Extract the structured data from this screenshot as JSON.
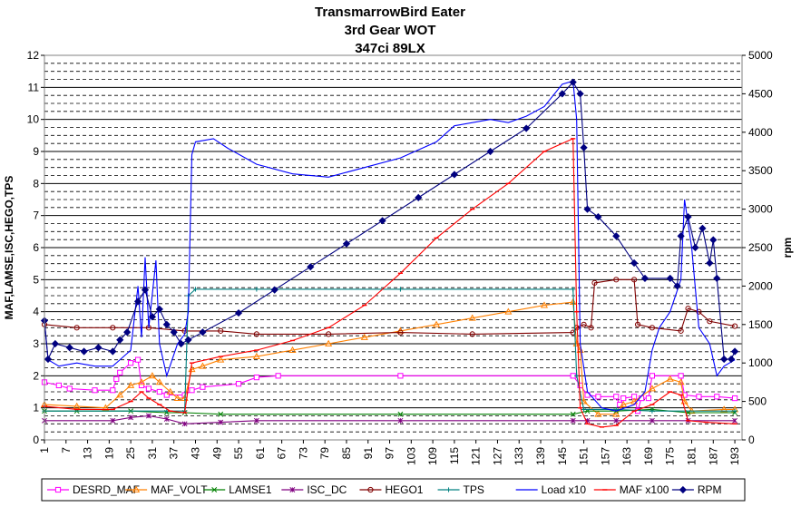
{
  "chart_data": {
    "type": "line",
    "title_lines": [
      "TransmarrowBird Eater",
      "3rd Gear WOT",
      "347ci 89LX"
    ],
    "ylabel_left": "MAF,LAMSE,ISC,HEGO,TPS",
    "ylabel_right": "rpm",
    "xlim": [
      1,
      195
    ],
    "ylim_left": [
      0,
      12
    ],
    "ylim_right": [
      0,
      5000
    ],
    "left_ticks": [
      "0",
      "1",
      "2",
      "3",
      "4",
      "5",
      "6",
      "7",
      "8",
      "9",
      "10",
      "11",
      "12"
    ],
    "right_ticks": [
      "0",
      "500",
      "1000",
      "1500",
      "2000",
      "2500",
      "3000",
      "3500",
      "4000",
      "4500",
      "5000"
    ],
    "x_ticks": [
      "1",
      "7",
      "13",
      "19",
      "25",
      "31",
      "37",
      "43",
      "49",
      "55",
      "61",
      "67",
      "73",
      "79",
      "85",
      "91",
      "97",
      "103",
      "109",
      "115",
      "121",
      "127",
      "133",
      "139",
      "145",
      "151",
      "157",
      "163",
      "169",
      "175",
      "181",
      "187",
      "193"
    ],
    "grid": "horizontal dashed minor, solid major",
    "legend_position": "bottom",
    "series": [
      {
        "name": "DESRD_MAF",
        "color": "#ff00ff",
        "marker": "square",
        "axis": "left",
        "points": [
          [
            1,
            1.8
          ],
          [
            5,
            1.7
          ],
          [
            8,
            1.6
          ],
          [
            15,
            1.55
          ],
          [
            20,
            1.55
          ],
          [
            21,
            1.9
          ],
          [
            22,
            2.1
          ],
          [
            25,
            2.4
          ],
          [
            27,
            2.5
          ],
          [
            28,
            1.7
          ],
          [
            30,
            1.6
          ],
          [
            33,
            1.5
          ],
          [
            35,
            1.4
          ],
          [
            40,
            1.4
          ],
          [
            42,
            1.55
          ],
          [
            45,
            1.65
          ],
          [
            55,
            1.75
          ],
          [
            60,
            1.95
          ],
          [
            66,
            2.0
          ],
          [
            100,
            2.0
          ],
          [
            148,
            2.0
          ],
          [
            150,
            1.7
          ],
          [
            152,
            1.4
          ],
          [
            155,
            1.35
          ],
          [
            160,
            1.35
          ],
          [
            161,
            1.1
          ],
          [
            162,
            1.3
          ],
          [
            165,
            1.35
          ],
          [
            166,
            0.9
          ],
          [
            167,
            1.3
          ],
          [
            169,
            1.3
          ],
          [
            170,
            2.0
          ],
          [
            178,
            2.0
          ],
          [
            179,
            1.4
          ],
          [
            183,
            1.35
          ],
          [
            188,
            1.35
          ],
          [
            193,
            1.3
          ]
        ]
      },
      {
        "name": "MAF_VOLT",
        "color": "#ff8000",
        "marker": "triangle",
        "axis": "left",
        "points": [
          [
            1,
            1.1
          ],
          [
            10,
            1.05
          ],
          [
            18,
            1.0
          ],
          [
            22,
            1.4
          ],
          [
            25,
            1.7
          ],
          [
            28,
            1.8
          ],
          [
            31,
            2.0
          ],
          [
            33,
            1.8
          ],
          [
            36,
            1.5
          ],
          [
            38,
            1.3
          ],
          [
            40,
            1.3
          ],
          [
            42,
            2.2
          ],
          [
            45,
            2.3
          ],
          [
            50,
            2.5
          ],
          [
            60,
            2.6
          ],
          [
            70,
            2.8
          ],
          [
            80,
            3.0
          ],
          [
            90,
            3.2
          ],
          [
            100,
            3.4
          ],
          [
            110,
            3.6
          ],
          [
            120,
            3.8
          ],
          [
            130,
            4.0
          ],
          [
            140,
            4.2
          ],
          [
            148,
            4.3
          ],
          [
            149,
            3.0
          ],
          [
            150,
            2.8
          ],
          [
            151,
            1.2
          ],
          [
            155,
            0.8
          ],
          [
            160,
            0.8
          ],
          [
            162,
            1.1
          ],
          [
            165,
            1.2
          ],
          [
            170,
            1.6
          ],
          [
            175,
            1.9
          ],
          [
            178,
            1.8
          ],
          [
            179,
            1.2
          ],
          [
            181,
            0.9
          ],
          [
            190,
            0.95
          ],
          [
            193,
            0.95
          ]
        ]
      },
      {
        "name": "LAMSE1",
        "color": "#008000",
        "marker": "x",
        "axis": "left",
        "points": [
          [
            1,
            0.9
          ],
          [
            10,
            0.9
          ],
          [
            25,
            0.9
          ],
          [
            35,
            0.85
          ],
          [
            40,
            0.85
          ],
          [
            50,
            0.8
          ],
          [
            100,
            0.8
          ],
          [
            148,
            0.8
          ],
          [
            152,
            0.9
          ],
          [
            160,
            0.9
          ],
          [
            170,
            0.95
          ],
          [
            180,
            0.85
          ],
          [
            193,
            0.85
          ]
        ]
      },
      {
        "name": "ISC_DC",
        "color": "#800080",
        "marker": "star",
        "axis": "left",
        "points": [
          [
            1,
            0.6
          ],
          [
            20,
            0.6
          ],
          [
            25,
            0.7
          ],
          [
            30,
            0.75
          ],
          [
            35,
            0.65
          ],
          [
            40,
            0.5
          ],
          [
            50,
            0.55
          ],
          [
            60,
            0.6
          ],
          [
            100,
            0.6
          ],
          [
            148,
            0.6
          ],
          [
            152,
            0.6
          ],
          [
            160,
            0.6
          ],
          [
            170,
            0.6
          ],
          [
            180,
            0.6
          ],
          [
            193,
            0.6
          ]
        ]
      },
      {
        "name": "HEGO1",
        "color": "#800000",
        "marker": "circle",
        "axis": "left",
        "points": [
          [
            1,
            3.6
          ],
          [
            10,
            3.5
          ],
          [
            20,
            3.5
          ],
          [
            30,
            3.5
          ],
          [
            40,
            3.4
          ],
          [
            50,
            3.4
          ],
          [
            60,
            3.3
          ],
          [
            80,
            3.3
          ],
          [
            100,
            3.35
          ],
          [
            120,
            3.3
          ],
          [
            148,
            3.35
          ],
          [
            149,
            3.5
          ],
          [
            151,
            3.6
          ],
          [
            153,
            3.5
          ],
          [
            154,
            4.9
          ],
          [
            160,
            5.0
          ],
          [
            165,
            5.0
          ],
          [
            166,
            3.6
          ],
          [
            170,
            3.5
          ],
          [
            178,
            3.4
          ],
          [
            180,
            4.1
          ],
          [
            183,
            4.0
          ],
          [
            186,
            3.7
          ],
          [
            193,
            3.55
          ]
        ]
      },
      {
        "name": "TPS",
        "color": "#008080",
        "marker": "plus",
        "axis": "left",
        "points": [
          [
            1,
            0.9
          ],
          [
            35,
            0.9
          ],
          [
            40,
            0.9
          ],
          [
            41,
            4.5
          ],
          [
            43,
            4.7
          ],
          [
            60,
            4.7
          ],
          [
            100,
            4.7
          ],
          [
            148,
            4.7
          ],
          [
            149,
            2.0
          ],
          [
            151,
            0.95
          ],
          [
            160,
            0.95
          ],
          [
            170,
            0.9
          ],
          [
            193,
            0.9
          ]
        ]
      },
      {
        "name": "Load x10",
        "color": "#0000ff",
        "marker": "none",
        "axis": "left",
        "points": [
          [
            1,
            3.7
          ],
          [
            2,
            2.5
          ],
          [
            5,
            2.3
          ],
          [
            10,
            2.4
          ],
          [
            15,
            2.3
          ],
          [
            20,
            2.3
          ],
          [
            25,
            2.8
          ],
          [
            27,
            4.8
          ],
          [
            28,
            3.2
          ],
          [
            29,
            5.7
          ],
          [
            30,
            3.5
          ],
          [
            32,
            5.6
          ],
          [
            33,
            3.0
          ],
          [
            35,
            2.0
          ],
          [
            38,
            3.0
          ],
          [
            40,
            3.3
          ],
          [
            41,
            4.0
          ],
          [
            42,
            8.9
          ],
          [
            43,
            9.3
          ],
          [
            48,
            9.4
          ],
          [
            52,
            9.1
          ],
          [
            60,
            8.6
          ],
          [
            70,
            8.3
          ],
          [
            80,
            8.2
          ],
          [
            90,
            8.5
          ],
          [
            100,
            8.8
          ],
          [
            110,
            9.3
          ],
          [
            115,
            9.8
          ],
          [
            125,
            10.0
          ],
          [
            130,
            9.9
          ],
          [
            135,
            10.1
          ],
          [
            140,
            10.4
          ],
          [
            145,
            11.1
          ],
          [
            148,
            11.2
          ],
          [
            149,
            10.0
          ],
          [
            150,
            3.0
          ],
          [
            152,
            1.5
          ],
          [
            156,
            1.0
          ],
          [
            160,
            0.9
          ],
          [
            165,
            1.1
          ],
          [
            168,
            1.5
          ],
          [
            170,
            2.8
          ],
          [
            172,
            3.5
          ],
          [
            175,
            4.0
          ],
          [
            178,
            5.0
          ],
          [
            179,
            7.5
          ],
          [
            181,
            6.0
          ],
          [
            183,
            3.5
          ],
          [
            186,
            3.0
          ],
          [
            188,
            2.0
          ],
          [
            190,
            2.3
          ],
          [
            193,
            2.5
          ]
        ]
      },
      {
        "name": "MAF x100",
        "color": "#ff0000",
        "marker": "dash",
        "axis": "left",
        "points": [
          [
            1,
            1.05
          ],
          [
            10,
            0.95
          ],
          [
            20,
            0.95
          ],
          [
            25,
            1.2
          ],
          [
            28,
            1.5
          ],
          [
            30,
            1.3
          ],
          [
            33,
            1.1
          ],
          [
            36,
            0.9
          ],
          [
            40,
            0.85
          ],
          [
            42,
            2.4
          ],
          [
            50,
            2.6
          ],
          [
            60,
            2.8
          ],
          [
            70,
            3.1
          ],
          [
            80,
            3.5
          ],
          [
            90,
            4.2
          ],
          [
            100,
            5.2
          ],
          [
            110,
            6.3
          ],
          [
            120,
            7.2
          ],
          [
            130,
            8.0
          ],
          [
            140,
            9.0
          ],
          [
            148,
            9.4
          ],
          [
            149,
            4.0
          ],
          [
            150,
            1.0
          ],
          [
            152,
            0.5
          ],
          [
            156,
            0.4
          ],
          [
            160,
            0.45
          ],
          [
            165,
            0.9
          ],
          [
            170,
            1.1
          ],
          [
            175,
            1.5
          ],
          [
            178,
            1.4
          ],
          [
            180,
            0.6
          ],
          [
            185,
            0.55
          ],
          [
            193,
            0.5
          ]
        ]
      },
      {
        "name": "RPM",
        "color": "#000080",
        "marker": "diamond",
        "axis": "right",
        "points": [
          [
            1,
            1550
          ],
          [
            2,
            1050
          ],
          [
            4,
            1250
          ],
          [
            8,
            1200
          ],
          [
            12,
            1150
          ],
          [
            16,
            1200
          ],
          [
            20,
            1150
          ],
          [
            22,
            1300
          ],
          [
            24,
            1400
          ],
          [
            27,
            1800
          ],
          [
            29,
            1950
          ],
          [
            31,
            1600
          ],
          [
            33,
            1700
          ],
          [
            35,
            1500
          ],
          [
            37,
            1400
          ],
          [
            39,
            1250
          ],
          [
            41,
            1300
          ],
          [
            45,
            1400
          ],
          [
            55,
            1650
          ],
          [
            65,
            1950
          ],
          [
            75,
            2250
          ],
          [
            85,
            2550
          ],
          [
            95,
            2850
          ],
          [
            105,
            3150
          ],
          [
            115,
            3450
          ],
          [
            125,
            3750
          ],
          [
            135,
            4050
          ],
          [
            145,
            4500
          ],
          [
            148,
            4650
          ],
          [
            150,
            4500
          ],
          [
            151,
            3800
          ],
          [
            152,
            3000
          ],
          [
            155,
            2900
          ],
          [
            160,
            2650
          ],
          [
            165,
            2300
          ],
          [
            168,
            2100
          ],
          [
            175,
            2100
          ],
          [
            177,
            2000
          ],
          [
            178,
            2650
          ],
          [
            180,
            2900
          ],
          [
            182,
            2500
          ],
          [
            184,
            2750
          ],
          [
            186,
            2300
          ],
          [
            187,
            2600
          ],
          [
            188,
            2100
          ],
          [
            190,
            1050
          ],
          [
            192,
            1050
          ],
          [
            193,
            1150
          ]
        ]
      }
    ]
  }
}
